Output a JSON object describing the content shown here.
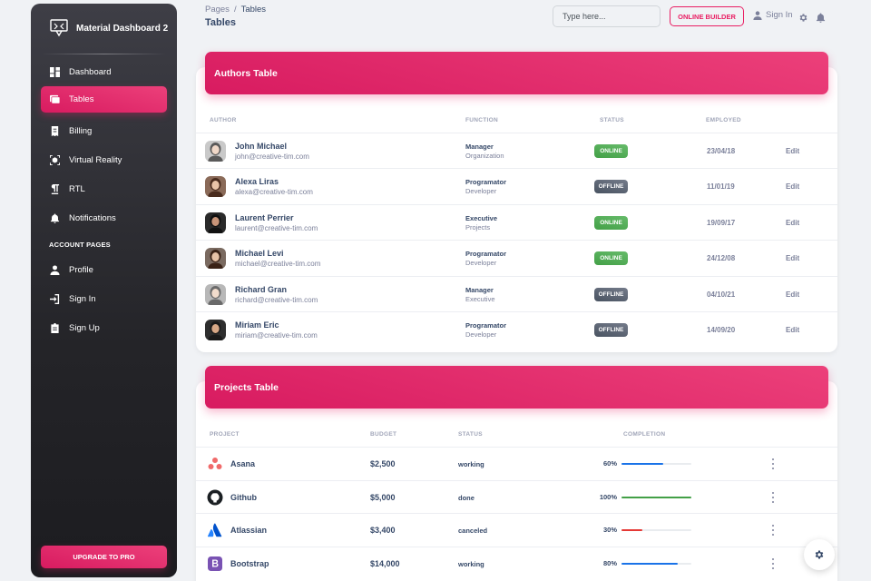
{
  "sidebar": {
    "brand": "Material Dashboard 2",
    "items": [
      {
        "label": "Dashboard",
        "icon": "dashboard-icon"
      },
      {
        "label": "Tables",
        "icon": "table-icon",
        "active": true
      },
      {
        "label": "Billing",
        "icon": "receipt-icon"
      },
      {
        "label": "Virtual Reality",
        "icon": "view-in-ar-icon"
      },
      {
        "label": "RTL",
        "icon": "format-textdirection-icon"
      },
      {
        "label": "Notifications",
        "icon": "bell-icon"
      }
    ],
    "section_title": "ACCOUNT PAGES",
    "account_items": [
      {
        "label": "Profile",
        "icon": "person-icon"
      },
      {
        "label": "Sign In",
        "icon": "login-icon"
      },
      {
        "label": "Sign Up",
        "icon": "assignment-icon"
      }
    ],
    "upgrade_label": "UPGRADE TO PRO"
  },
  "topbar": {
    "breadcrumb_root": "Pages",
    "breadcrumb_sep": "/",
    "breadcrumb_current": "Tables",
    "page_title": "Tables",
    "search_placeholder": "Type here...",
    "builder_label": "ONLINE BUILDER",
    "signin_label": "Sign In"
  },
  "authors_table": {
    "title": "Authors Table",
    "headers": {
      "author": "AUTHOR",
      "function": "FUNCTION",
      "status": "STATUS",
      "employed": "EMPLOYED"
    },
    "rows": [
      {
        "name": "John Michael",
        "email": "john@creative-tim.com",
        "role": "Manager",
        "dept": "Organization",
        "status": "ONLINE",
        "date": "23/04/18",
        "action": "Edit"
      },
      {
        "name": "Alexa Liras",
        "email": "alexa@creative-tim.com",
        "role": "Programator",
        "dept": "Developer",
        "status": "OFFLINE",
        "date": "11/01/19",
        "action": "Edit"
      },
      {
        "name": "Laurent Perrier",
        "email": "laurent@creative-tim.com",
        "role": "Executive",
        "dept": "Projects",
        "status": "ONLINE",
        "date": "19/09/17",
        "action": "Edit"
      },
      {
        "name": "Michael Levi",
        "email": "michael@creative-tim.com",
        "role": "Programator",
        "dept": "Developer",
        "status": "ONLINE",
        "date": "24/12/08",
        "action": "Edit"
      },
      {
        "name": "Richard Gran",
        "email": "richard@creative-tim.com",
        "role": "Manager",
        "dept": "Executive",
        "status": "OFFLINE",
        "date": "04/10/21",
        "action": "Edit"
      },
      {
        "name": "Miriam Eric",
        "email": "miriam@creative-tim.com",
        "role": "Programator",
        "dept": "Developer",
        "status": "OFFLINE",
        "date": "14/09/20",
        "action": "Edit"
      }
    ]
  },
  "projects_table": {
    "title": "Projects Table",
    "headers": {
      "project": "PROJECT",
      "budget": "BUDGET",
      "status": "STATUS",
      "completion": "COMPLETION"
    },
    "rows": [
      {
        "name": "Asana",
        "icon": "asana-icon",
        "budget": "$2,500",
        "status": "working",
        "pct_label": "60%",
        "progress": 0.6,
        "bar_color": "#1a73e8"
      },
      {
        "name": "Github",
        "icon": "github-icon",
        "budget": "$5,000",
        "status": "done",
        "pct_label": "100%",
        "progress": 1.0,
        "bar_color": "#43a047"
      },
      {
        "name": "Atlassian",
        "icon": "atlassian-icon",
        "budget": "$3,400",
        "status": "canceled",
        "pct_label": "30%",
        "progress": 0.3,
        "bar_color": "#e53935"
      },
      {
        "name": "Bootstrap",
        "icon": "bootstrap-icon",
        "budget": "$14,000",
        "status": "working",
        "pct_label": "80%",
        "progress": 0.8,
        "bar_color": "#1a73e8"
      }
    ]
  },
  "colors": {
    "primary": "#e91e63",
    "online": "#4caf50",
    "offline": "#5c6470"
  }
}
